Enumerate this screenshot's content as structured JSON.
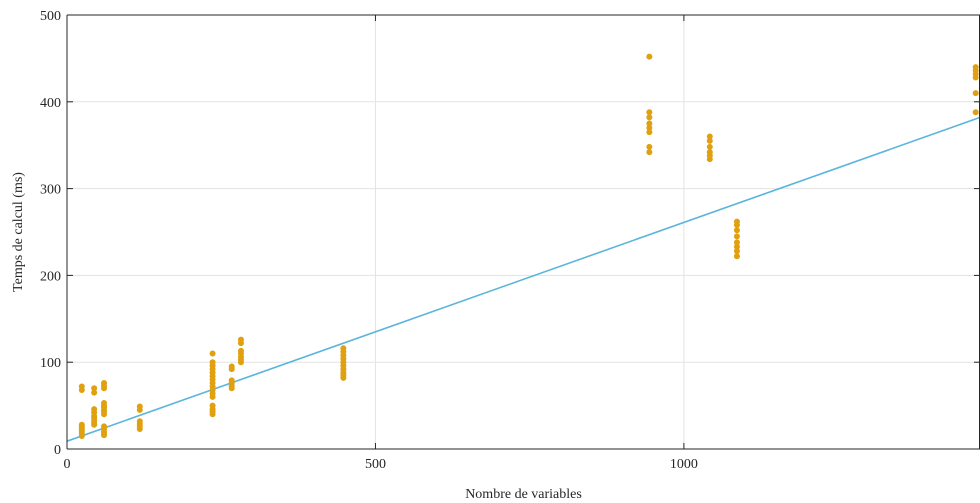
{
  "chart_data": {
    "type": "scatter",
    "title": "",
    "xlabel": "Nombre de variables",
    "ylabel": "Temps de calcul (ms)",
    "xlim": [
      0,
      1480
    ],
    "ylim": [
      0,
      500
    ],
    "xticks": [
      0,
      500,
      1000
    ],
    "yticks": [
      0,
      100,
      200,
      300,
      400,
      500
    ],
    "grid": true,
    "legend": "none",
    "colors": {
      "points": "#E0A010",
      "fit": "#5BB5DD",
      "grid": "#e3e3e3",
      "axis": "#262626"
    },
    "series": [
      {
        "type": "scatter",
        "points": [
          [
            24,
            15
          ],
          [
            24,
            18
          ],
          [
            24,
            20
          ],
          [
            24,
            22
          ],
          [
            24,
            24
          ],
          [
            24,
            26
          ],
          [
            24,
            28
          ],
          [
            24,
            68
          ],
          [
            24,
            72
          ],
          [
            44,
            28
          ],
          [
            44,
            30
          ],
          [
            44,
            33
          ],
          [
            44,
            36
          ],
          [
            44,
            38
          ],
          [
            44,
            42
          ],
          [
            44,
            46
          ],
          [
            44,
            65
          ],
          [
            44,
            70
          ],
          [
            60,
            16
          ],
          [
            60,
            18
          ],
          [
            60,
            20
          ],
          [
            60,
            23
          ],
          [
            60,
            26
          ],
          [
            60,
            40
          ],
          [
            60,
            43
          ],
          [
            60,
            45
          ],
          [
            60,
            48
          ],
          [
            60,
            50
          ],
          [
            60,
            53
          ],
          [
            60,
            70
          ],
          [
            60,
            73
          ],
          [
            60,
            76
          ],
          [
            118,
            23
          ],
          [
            118,
            26
          ],
          [
            118,
            29
          ],
          [
            118,
            32
          ],
          [
            118,
            45
          ],
          [
            118,
            49
          ],
          [
            236,
            40
          ],
          [
            236,
            43
          ],
          [
            236,
            46
          ],
          [
            236,
            50
          ],
          [
            236,
            60
          ],
          [
            236,
            64
          ],
          [
            236,
            68
          ],
          [
            236,
            72
          ],
          [
            236,
            76
          ],
          [
            236,
            80
          ],
          [
            236,
            84
          ],
          [
            236,
            88
          ],
          [
            236,
            92
          ],
          [
            236,
            96
          ],
          [
            236,
            100
          ],
          [
            236,
            110
          ],
          [
            267,
            70
          ],
          [
            267,
            73
          ],
          [
            267,
            76
          ],
          [
            267,
            79
          ],
          [
            267,
            92
          ],
          [
            267,
            95
          ],
          [
            282,
            100
          ],
          [
            282,
            103
          ],
          [
            282,
            106
          ],
          [
            282,
            110
          ],
          [
            282,
            113
          ],
          [
            282,
            122
          ],
          [
            282,
            126
          ],
          [
            448,
            82
          ],
          [
            448,
            85
          ],
          [
            448,
            88
          ],
          [
            448,
            92
          ],
          [
            448,
            96
          ],
          [
            448,
            100
          ],
          [
            448,
            104
          ],
          [
            448,
            108
          ],
          [
            448,
            112
          ],
          [
            448,
            116
          ],
          [
            944,
            342
          ],
          [
            944,
            348
          ],
          [
            944,
            365
          ],
          [
            944,
            370
          ],
          [
            944,
            375
          ],
          [
            944,
            382
          ],
          [
            944,
            388
          ],
          [
            944,
            452
          ],
          [
            1042,
            334
          ],
          [
            1042,
            338
          ],
          [
            1042,
            342
          ],
          [
            1042,
            348
          ],
          [
            1042,
            355
          ],
          [
            1042,
            360
          ],
          [
            1086,
            222
          ],
          [
            1086,
            228
          ],
          [
            1086,
            233
          ],
          [
            1086,
            238
          ],
          [
            1086,
            245
          ],
          [
            1086,
            252
          ],
          [
            1086,
            258
          ],
          [
            1086,
            262
          ],
          [
            1473,
            388
          ],
          [
            1473,
            410
          ],
          [
            1473,
            428
          ],
          [
            1473,
            432
          ],
          [
            1473,
            436
          ],
          [
            1473,
            440
          ]
        ]
      },
      {
        "type": "line",
        "points": [
          [
            0,
            9
          ],
          [
            1480,
            382
          ]
        ]
      }
    ]
  }
}
